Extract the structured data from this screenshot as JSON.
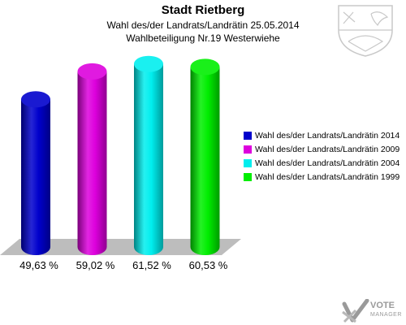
{
  "header": {
    "title": "Stadt Rietberg",
    "subtitle1": "Wahl des/der Landrats/Landrätin 25.05.2014",
    "subtitle2": "Wahlbeteiligung Nr.19 Westerwiehe"
  },
  "chart_data": {
    "type": "bar",
    "categories": [
      "Wahl des/der Landrats/Landrätin 2014",
      "Wahl des/der Landrats/Landrätin 2009",
      "Wahl des/der Landrats/Landrätin 2004",
      "Wahl des/der Landrats/Landrätin 1999"
    ],
    "values": [
      49.63,
      59.02,
      61.52,
      60.53
    ],
    "value_labels": [
      "49,63 %",
      "59,02 %",
      "61,52 %",
      "60,53 %"
    ],
    "colors": [
      "#0000cc",
      "#dd00dd",
      "#00eeee",
      "#00ee00"
    ],
    "ylim": [
      0,
      65
    ],
    "legend_position": "right",
    "grid": false,
    "style": "3d-cylinder"
  },
  "logo": {
    "line1": "VOTE",
    "line2": "MANAGER",
    "icon": "vote-check-icon"
  },
  "crest": {
    "icon": "coat-of-arms-icon"
  }
}
